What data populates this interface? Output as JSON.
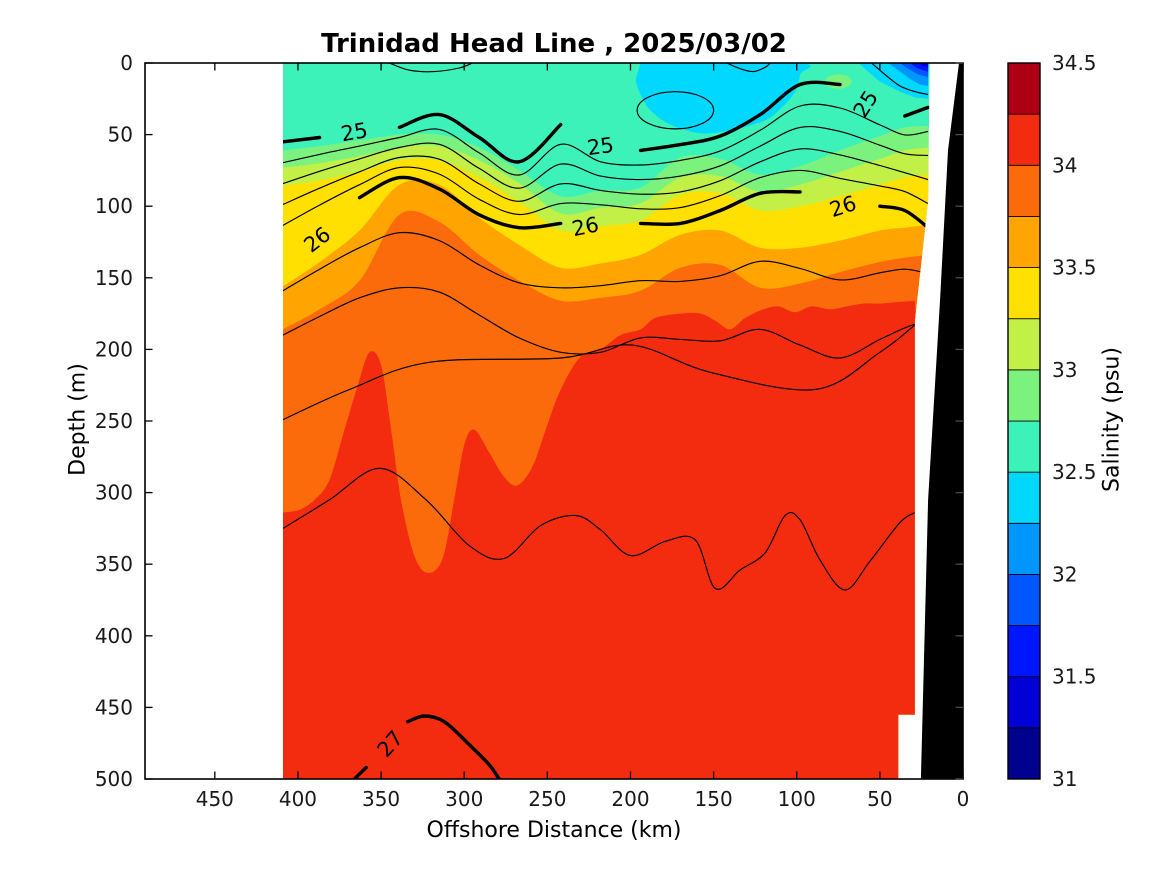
{
  "title": "Trinidad Head Line , 2025/03/02",
  "x_axis": {
    "label": "Offshore Distance (km)",
    "tick_labels": [
      "450",
      "400",
      "350",
      "300",
      "250",
      "200",
      "150",
      "100",
      "50",
      "0"
    ],
    "tick_values": [
      450,
      400,
      350,
      300,
      250,
      200,
      150,
      100,
      50,
      0
    ],
    "range": [
      492,
      0
    ],
    "direction": "reversed"
  },
  "y_axis": {
    "label": "Depth (m)",
    "tick_labels": [
      "0",
      "50",
      "100",
      "150",
      "200",
      "250",
      "300",
      "350",
      "400",
      "450",
      "500"
    ],
    "tick_values": [
      0,
      50,
      100,
      150,
      200,
      250,
      300,
      350,
      400,
      450,
      500
    ],
    "range": [
      0,
      500
    ],
    "direction": "down"
  },
  "colorbar": {
    "label": "Salinity (psu)",
    "range": [
      31,
      34.5
    ],
    "segment_step": 0.25,
    "tick_labels": [
      "31",
      "31.5",
      "32",
      "32.5",
      "33",
      "33.5",
      "34",
      "34.5"
    ],
    "tick_values": [
      31,
      31.5,
      32,
      32.5,
      33,
      33.5,
      34,
      34.5
    ],
    "colors_low_to_high": [
      "#00008F",
      "#0000D6",
      "#0016FF",
      "#0057FF",
      "#0096FF",
      "#00D8FF",
      "#3CF2B8",
      "#7BF27D",
      "#C3F046",
      "#FFE000",
      "#FFA400",
      "#FB6A0B",
      "#F32C10",
      "#AE0014"
    ]
  },
  "chart_data": {
    "type": "heatmap",
    "subtype": "filled_contour_ocean_section",
    "title": "Trinidad Head Line , 2025/03/02",
    "xlabel": "Offshore Distance (km)",
    "ylabel": "Depth (m)",
    "colorbar_label": "Salinity (psu)",
    "x_range_km": [
      492,
      0
    ],
    "y_range_m": [
      0,
      500
    ],
    "contour_line_color": "#000000",
    "section_outline_km_m": [
      [
        409,
        0
      ],
      [
        20,
        0
      ],
      [
        21,
        96
      ],
      [
        29,
        180
      ],
      [
        29,
        455
      ],
      [
        39,
        455
      ],
      [
        39,
        500
      ],
      [
        409,
        500
      ]
    ],
    "seafloor_wedge_km_m": [
      [
        2.4,
        0
      ],
      [
        0,
        0
      ],
      [
        0,
        500
      ],
      [
        25.3,
        500
      ],
      [
        21,
        305
      ],
      [
        13.8,
        165
      ],
      [
        9,
        61
      ]
    ],
    "x_km_samples": [
      409,
      387,
      363,
      339,
      315,
      291,
      267,
      242,
      218,
      194,
      170,
      146,
      122,
      98,
      74,
      50,
      35,
      21
    ],
    "salinity_bands": [
      {
        "psu_range": [
          32.5,
          32.75
        ],
        "color": "#3CF2B8",
        "note": "surface layer, fills section above 32.75 boundary"
      },
      {
        "psu_range": [
          32.75,
          33.0
        ],
        "color": "#7BF27D",
        "top_depth_m": [
          61,
          58,
          54,
          50,
          50,
          59,
          75,
          93,
          89,
          87,
          66,
          67,
          78,
          72,
          61,
          51,
          45,
          44
        ]
      },
      {
        "psu_range": [
          33.0,
          33.25
        ],
        "color": "#C3F046",
        "top_depth_m": [
          73,
          70,
          65,
          59,
          58,
          68,
          84,
          105,
          101,
          98,
          80,
          79,
          90,
          85,
          76,
          67,
          61,
          59
        ]
      },
      {
        "psu_range": [
          33.25,
          33.5
        ],
        "color": "#FFE000",
        "top_depth_m": [
          86,
          82,
          76,
          68,
          68,
          80,
          97,
          117,
          114,
          110,
          92,
          91,
          103,
          100,
          93,
          85,
          80,
          78
        ]
      },
      {
        "psu_range": [
          33.5,
          33.75
        ],
        "color": "#FFA400",
        "top_depth_m": [
          156,
          139,
          117,
          85,
          85,
          108,
          127,
          143,
          140,
          134,
          120,
          117,
          129,
          129,
          124,
          117,
          115,
          113
        ]
      },
      {
        "psu_range": [
          33.75,
          34.0
        ],
        "color": "#FB6A0B",
        "top_depth_m": [
          186,
          172,
          152,
          106,
          111,
          134,
          152,
          166,
          164,
          159,
          143,
          141,
          157,
          154,
          146,
          139,
          136,
          134
        ]
      }
    ],
    "deep_band": {
      "psu_range": [
        34.0,
        34.25
      ],
      "color": "#F32C10",
      "km": [
        409,
        399,
        390,
        381,
        372,
        364,
        357,
        350,
        344,
        338,
        330,
        322,
        313,
        306,
        300,
        294,
        285,
        276,
        268,
        259,
        251,
        242,
        230,
        218,
        206,
        194,
        185,
        170,
        158,
        149,
        140,
        131,
        120,
        111,
        101,
        91,
        80,
        70,
        60,
        50,
        40,
        29
      ],
      "top_depth_m": [
        314,
        312,
        305,
        291,
        256,
        225,
        202,
        211,
        256,
        305,
        344,
        356,
        346,
        305,
        267,
        256,
        272,
        289,
        295,
        282,
        256,
        228,
        205,
        200,
        190,
        186,
        178,
        175,
        175,
        180,
        186,
        178,
        172,
        170,
        174,
        170,
        172,
        170,
        168,
        168,
        167,
        166
      ]
    },
    "isopycnals": {
      "units": "sigma-theta (kg/m^3); depths in m at x_km_samples",
      "thick_levels": [
        25,
        26,
        27
      ],
      "thin_interval": 0.2,
      "s25_depth_m": [
        55,
        52,
        49,
        45,
        36,
        52,
        69,
        43,
        59,
        61,
        57,
        51,
        36,
        15,
        15,
        29,
        37,
        31
      ],
      "s26_depth_m": [
        128,
        111,
        94,
        80,
        88,
        106,
        115,
        112,
        109,
        112,
        112,
        103,
        91,
        90,
        97,
        100,
        103,
        115
      ],
      "s26_4_depth_m": [
        190,
        177,
        164,
        157,
        160,
        176,
        192,
        202,
        202,
        192,
        193,
        194,
        186,
        197,
        206,
        193,
        185,
        179
      ],
      "s26_6": {
        "km": [
          409,
          369,
          321,
          242,
          199,
          152,
          89,
          50,
          29
        ],
        "depth_m": [
          249,
          228,
          209,
          206,
          197,
          216,
          228,
          202,
          183
        ]
      },
      "s26_8": {
        "km": [
          409,
          381,
          351,
          323,
          297,
          276,
          254,
          233,
          218,
          200,
          179,
          161,
          149,
          134,
          119,
          107,
          98,
          86,
          71,
          56,
          38,
          29
        ],
        "depth_m": [
          325,
          305,
          283,
          305,
          337,
          346,
          323,
          316,
          326,
          344,
          334,
          333,
          367,
          354,
          342,
          316,
          319,
          347,
          368,
          348,
          321,
          314
        ]
      },
      "s27": {
        "km": [
          366,
          359,
          351,
          334,
          324,
          312,
          297,
          285,
          279
        ],
        "depth_m": [
          500,
          492,
          480,
          460,
          456,
          460,
          476,
          490,
          500
        ]
      }
    },
    "contour_labels": [
      {
        "text": "25",
        "km": 366,
        "depth_m": 49,
        "rot": -10
      },
      {
        "text": "25",
        "km": 218,
        "depth_m": 59,
        "rot": -8
      },
      {
        "text": "25",
        "km": 58,
        "depth_m": 29,
        "rot": -58
      },
      {
        "text": "26",
        "km": 388,
        "depth_m": 124,
        "rot": -38
      },
      {
        "text": "26",
        "km": 227,
        "depth_m": 115,
        "rot": -12
      },
      {
        "text": "26",
        "km": 72,
        "depth_m": 101,
        "rot": -18
      },
      {
        "text": "27",
        "km": 344,
        "depth_m": 476,
        "rot": -48
      }
    ],
    "label_gaps_km": {
      "s25": [
        [
          379,
          354
        ],
        [
          232,
          205
        ],
        [
          67,
          47
        ]
      ],
      "s26": [
        [
          399,
          376
        ],
        [
          241,
          212
        ],
        [
          85,
          58
        ]
      ],
      "s27": [
        [
          354,
          336
        ]
      ]
    },
    "surface_features": {
      "cyan_patch": {
        "psu_range": [
          32.25,
          32.5
        ],
        "color": "#00D8FF",
        "outline_km_m": [
          [
            194,
            0
          ],
          [
            99,
            0
          ],
          [
            98,
            8
          ],
          [
            101,
            20
          ],
          [
            109,
            31
          ],
          [
            119,
            40
          ],
          [
            140,
            47
          ],
          [
            158,
            49
          ],
          [
            176,
            43
          ],
          [
            188,
            33
          ],
          [
            194,
            22
          ],
          [
            197,
            12
          ]
        ]
      },
      "cyan_inner_contour_ellipse": {
        "center_km_m": [
          173,
          33
        ],
        "rx_km": 23,
        "ry_m": 13
      },
      "top_contour_arc_1": [
        [
          345,
          0
        ],
        [
          333,
          5
        ],
        [
          318,
          6
        ],
        [
          303,
          3.5
        ],
        [
          295,
          0
        ]
      ],
      "top_contour_arc_2": [
        [
          142,
          0
        ],
        [
          134,
          4
        ],
        [
          126,
          6
        ],
        [
          119,
          3
        ],
        [
          116,
          0
        ]
      ],
      "pale_speck": {
        "color": "#7BF27D",
        "center_km_m": [
          75,
          13
        ],
        "rx_km": 8,
        "ry_m": 5
      },
      "coastal_low_salinity_plume": [
        {
          "psu_below": 32.5,
          "color": "#00D8FF",
          "outline": [
            [
              63,
              0
            ],
            [
              57,
              6
            ],
            [
              50,
              13
            ],
            [
              38,
              20
            ],
            [
              29,
              24
            ],
            [
              21,
              25
            ],
            [
              21,
              0
            ]
          ]
        },
        {
          "psu_below": 32.25,
          "color": "#0096FF",
          "outline": [
            [
              45,
              0
            ],
            [
              39,
              5
            ],
            [
              32,
              11
            ],
            [
              26,
              15
            ],
            [
              21,
              16
            ],
            [
              21,
              0
            ]
          ]
        },
        {
          "psu_below": 32.0,
          "color": "#0057FF",
          "outline": [
            [
              38,
              0
            ],
            [
              33,
              4
            ],
            [
              27,
              8
            ],
            [
              21,
              10
            ],
            [
              21,
              0
            ]
          ]
        },
        {
          "psu_below": 31.75,
          "color": "#0016FF",
          "outline": [
            [
              32,
              0
            ],
            [
              28,
              3.5
            ],
            [
              23,
              5.5
            ],
            [
              21,
              6
            ],
            [
              21,
              0
            ]
          ]
        },
        {
          "psu_below": 31.5,
          "color": "#0000D6",
          "outline": [
            [
              27,
              0
            ],
            [
              24,
              2
            ],
            [
              21,
              3
            ],
            [
              21,
              0
            ]
          ]
        }
      ],
      "plume_thin_contour": [
        [
          55,
          0
        ],
        [
          47,
          8
        ],
        [
          38,
          16
        ],
        [
          29,
          20
        ],
        [
          21,
          22
        ]
      ]
    }
  }
}
